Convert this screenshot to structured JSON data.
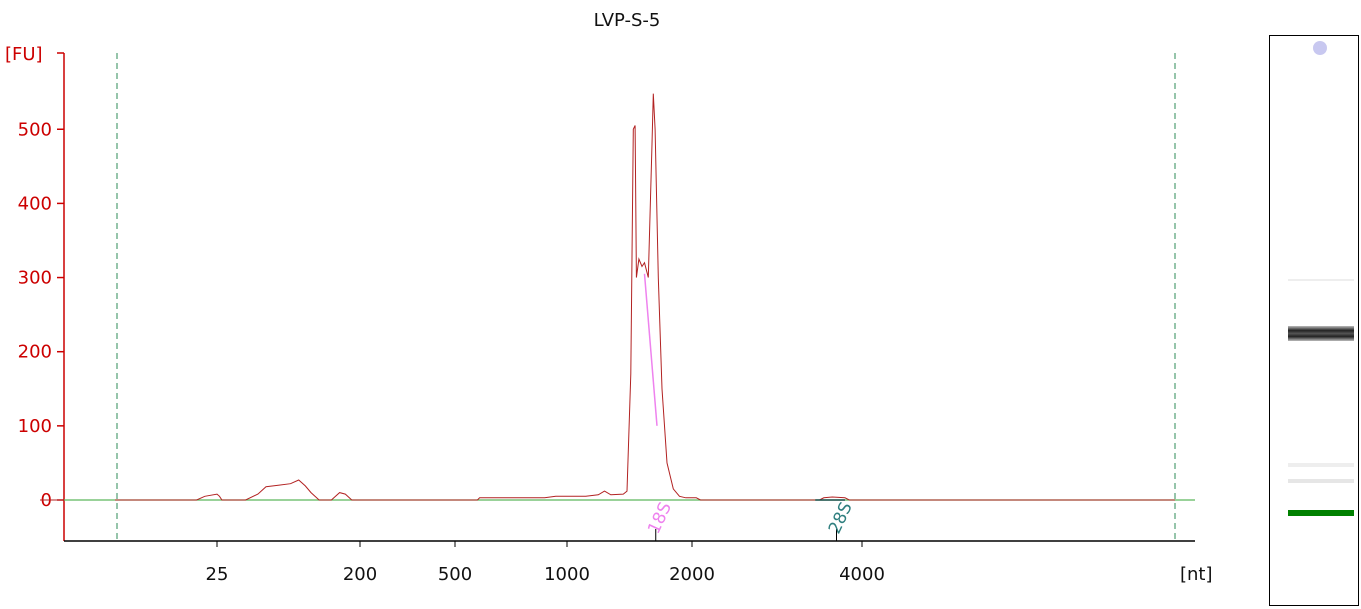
{
  "chart_data": {
    "type": "line",
    "title": "LVP-S-5",
    "ylabel": "[FU]",
    "xlabel": "[nt]",
    "ylim": [
      -55,
      600
    ],
    "y_ticks": [
      0,
      100,
      200,
      300,
      400,
      500
    ],
    "x_ticks": [
      {
        "label": "25",
        "value": 25
      },
      {
        "label": "200",
        "value": 200
      },
      {
        "label": "500",
        "value": 500
      },
      {
        "label": "1000",
        "value": 1000
      },
      {
        "label": "2000",
        "value": 2000
      },
      {
        "label": "4000",
        "value": 4000
      }
    ],
    "series": [
      {
        "color": "#b22222",
        "points": [
          [
            0,
            0
          ],
          [
            20,
            0
          ],
          [
            22,
            5
          ],
          [
            25,
            8
          ],
          [
            28,
            5
          ],
          [
            31,
            0
          ],
          [
            60,
            0
          ],
          [
            75,
            8
          ],
          [
            85,
            18
          ],
          [
            100,
            20
          ],
          [
            115,
            22
          ],
          [
            125,
            27
          ],
          [
            133,
            19
          ],
          [
            140,
            10
          ],
          [
            150,
            0
          ],
          [
            165,
            0
          ],
          [
            175,
            10
          ],
          [
            182,
            8
          ],
          [
            190,
            0
          ],
          [
            400,
            0
          ],
          [
            600,
            0
          ],
          [
            610,
            3
          ],
          [
            800,
            3
          ],
          [
            900,
            3
          ],
          [
            950,
            5
          ],
          [
            1150,
            5
          ],
          [
            1250,
            7
          ],
          [
            1300,
            12
          ],
          [
            1350,
            7
          ],
          [
            1450,
            8
          ],
          [
            1480,
            12
          ],
          [
            1510,
            170
          ],
          [
            1530,
            500
          ],
          [
            1545,
            505
          ],
          [
            1555,
            300
          ],
          [
            1575,
            325
          ],
          [
            1600,
            315
          ],
          [
            1620,
            320
          ],
          [
            1650,
            300
          ],
          [
            1680,
            480
          ],
          [
            1690,
            548
          ],
          [
            1705,
            500
          ],
          [
            1730,
            300
          ],
          [
            1760,
            150
          ],
          [
            1800,
            50
          ],
          [
            1850,
            15
          ],
          [
            1900,
            5
          ],
          [
            1950,
            3
          ],
          [
            2050,
            3
          ],
          [
            2100,
            0
          ],
          [
            3500,
            0
          ],
          [
            3550,
            3
          ],
          [
            3650,
            4
          ],
          [
            3800,
            3
          ],
          [
            3850,
            0
          ],
          [
            6000,
            0
          ]
        ]
      }
    ],
    "baseline": {
      "value": 0,
      "color": "#5cb85c"
    },
    "markers": [
      {
        "label": "18S",
        "x": 1710,
        "color": "#ee82ee"
      },
      {
        "label": "28S",
        "x": 3700,
        "color": "#2f7f7f"
      }
    ]
  },
  "colors": {
    "axis": "#cc0000",
    "signal": "#b22222",
    "baseline": "#5cb85c",
    "marker_lines": "#2e8b57",
    "gel_band": "#333333",
    "gel_marker": "#008000",
    "gel_dot": "#c8c8f0"
  }
}
